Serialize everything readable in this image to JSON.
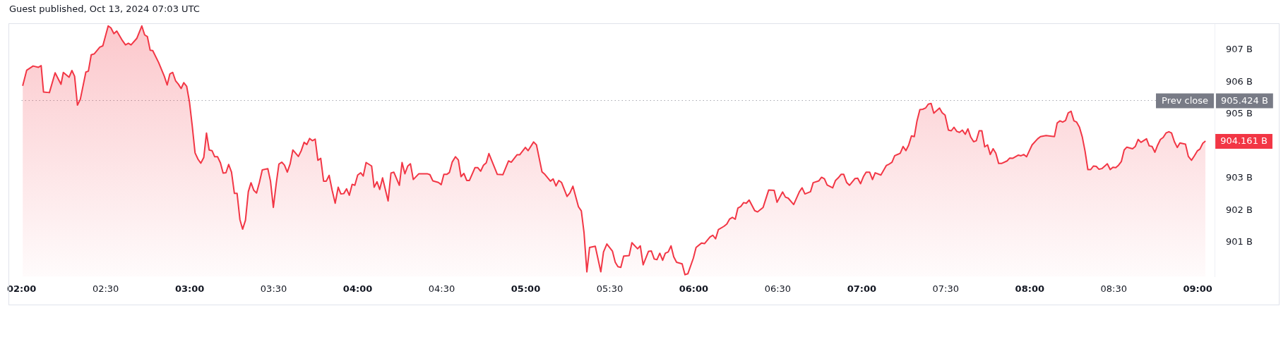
{
  "chart_data": {
    "type": "area",
    "title": "Guest published, Oct 13, 2024 07:03 UTC",
    "color": "#f23645",
    "x": [
      2.006,
      2.03,
      2.068,
      2.1,
      2.116,
      2.13,
      2.165,
      2.199,
      2.234,
      2.248,
      2.282,
      2.299,
      2.315,
      2.332,
      2.349,
      2.382,
      2.397,
      2.414,
      2.432,
      2.465,
      2.483,
      2.515,
      2.531,
      2.549,
      2.566,
      2.6,
      2.618,
      2.635,
      2.651,
      2.685,
      2.715,
      2.732,
      2.748,
      2.765,
      2.78,
      2.815,
      2.849,
      2.866,
      2.882,
      2.899,
      2.916,
      2.932,
      2.949,
      2.965,
      2.982,
      2.999,
      3.015,
      3.032,
      3.05,
      3.066,
      3.084,
      3.1,
      3.116,
      3.133,
      3.149,
      3.166,
      3.183,
      3.199,
      3.216,
      3.232,
      3.249,
      3.266,
      3.282,
      3.299,
      3.315,
      3.332,
      3.349,
      3.365,
      3.382,
      3.398,
      3.415,
      3.432,
      3.465,
      3.481,
      3.498,
      3.515,
      3.531,
      3.548,
      3.564,
      3.581,
      3.598,
      3.614,
      3.631,
      3.647,
      3.664,
      3.681,
      3.697,
      3.714,
      3.73,
      3.747,
      3.763,
      3.78,
      3.797,
      3.813,
      3.83,
      3.848,
      3.866,
      3.884,
      3.9,
      3.917,
      3.934,
      3.95,
      3.967,
      3.983,
      4.0,
      4.018,
      4.033,
      4.05,
      4.083,
      4.098,
      4.115,
      4.131,
      4.148,
      4.181,
      4.198,
      4.215,
      4.248,
      4.264,
      4.281,
      4.298,
      4.314,
      4.331,
      4.364,
      4.414,
      4.43,
      4.447,
      4.48,
      4.497,
      4.513,
      4.53,
      4.546,
      4.563,
      4.582,
      4.599,
      4.615,
      4.632,
      4.649,
      4.665,
      4.698,
      4.715,
      4.732,
      4.748,
      4.765,
      4.781,
      4.815,
      4.831,
      4.864,
      4.898,
      4.914,
      4.948,
      4.964,
      4.998,
      5.014,
      5.047,
      5.064,
      5.097,
      5.114,
      5.147,
      5.163,
      5.18,
      5.197,
      5.213,
      5.246,
      5.263,
      5.281,
      5.314,
      5.331,
      5.347,
      5.364,
      5.38,
      5.414,
      5.447,
      5.463,
      5.483,
      5.516,
      5.533,
      5.549,
      5.566,
      5.583,
      5.616,
      5.632,
      5.666,
      5.682,
      5.699,
      5.731,
      5.748,
      5.765,
      5.781,
      5.798,
      5.815,
      5.831,
      5.848,
      5.865,
      5.881,
      5.898,
      5.931,
      5.948,
      5.965,
      5.998,
      6.014,
      6.047,
      6.064,
      6.097,
      6.114,
      6.13,
      6.147,
      6.18,
      6.197,
      6.214,
      6.23,
      6.247,
      6.263,
      6.28,
      6.297,
      6.313,
      6.33,
      6.363,
      6.38,
      6.413,
      6.446,
      6.479,
      6.496,
      6.529,
      6.546,
      6.562,
      6.595,
      6.629,
      6.645,
      6.662,
      6.695,
      6.711,
      6.745,
      6.761,
      6.778,
      6.794,
      6.827,
      6.844,
      6.86,
      6.877,
      6.893,
      6.91,
      6.927,
      6.96,
      6.976,
      6.993,
      7.01,
      7.026,
      7.047,
      7.064,
      7.08,
      7.114,
      7.147,
      7.163,
      7.18,
      7.196,
      7.229,
      7.246,
      7.263,
      7.279,
      7.296,
      7.313,
      7.329,
      7.346,
      7.363,
      7.38,
      7.396,
      7.413,
      7.429,
      7.463,
      7.479,
      7.496,
      7.516,
      7.533,
      7.549,
      7.566,
      7.582,
      7.599,
      7.616,
      7.632,
      7.649,
      7.666,
      7.682,
      7.699,
      7.715,
      7.732,
      7.749,
      7.765,
      7.782,
      7.798,
      7.815,
      7.832,
      7.865,
      7.881,
      7.898,
      7.931,
      7.948,
      7.964,
      7.981,
      7.998,
      8.014,
      8.047,
      8.064,
      8.097,
      8.147,
      8.163,
      8.18,
      8.196,
      8.213,
      8.229,
      8.246,
      8.263,
      8.279,
      8.296,
      8.313,
      8.329,
      8.346,
      8.363,
      8.379,
      8.396,
      8.412,
      8.429,
      8.462,
      8.479,
      8.495,
      8.512,
      8.529,
      8.545,
      8.562,
      8.578,
      8.612,
      8.628,
      8.645,
      8.662,
      8.695,
      8.711,
      8.728,
      8.745,
      8.761,
      8.778,
      8.794,
      8.811,
      8.828,
      8.844,
      8.861,
      8.878,
      8.894,
      8.927,
      8.944,
      8.963,
      8.98,
      8.997,
      9.013,
      9.03,
      9.046
    ],
    "values": [
      905.88,
      906.37,
      906.5,
      906.46,
      906.51,
      905.69,
      905.67,
      906.29,
      905.93,
      906.3,
      906.15,
      906.36,
      906.18,
      905.28,
      905.46,
      906.31,
      906.34,
      906.85,
      906.88,
      907.09,
      907.13,
      907.75,
      907.69,
      907.51,
      907.59,
      907.29,
      907.16,
      907.21,
      907.16,
      907.36,
      907.75,
      907.47,
      907.42,
      906.99,
      906.98,
      906.61,
      906.18,
      905.91,
      906.25,
      906.3,
      906.04,
      905.94,
      905.8,
      905.98,
      905.87,
      905.37,
      904.64,
      903.79,
      903.59,
      903.47,
      903.65,
      904.41,
      903.88,
      903.86,
      903.67,
      903.67,
      903.48,
      903.16,
      903.17,
      903.43,
      903.19,
      902.53,
      902.53,
      901.71,
      901.41,
      901.69,
      902.58,
      902.86,
      902.62,
      902.54,
      902.87,
      903.26,
      903.3,
      902.91,
      902.09,
      902.83,
      903.44,
      903.5,
      903.41,
      903.19,
      903.45,
      903.88,
      903.78,
      903.68,
      903.86,
      904.12,
      904.05,
      904.24,
      904.17,
      904.22,
      903.56,
      903.62,
      902.91,
      902.91,
      903.09,
      902.62,
      902.22,
      902.72,
      902.51,
      902.52,
      902.67,
      902.47,
      902.81,
      902.78,
      903.1,
      903.17,
      903.07,
      903.49,
      903.38,
      902.72,
      902.89,
      902.65,
      903.01,
      902.29,
      903.16,
      903.19,
      902.78,
      903.49,
      903.14,
      903.38,
      903.45,
      902.96,
      903.14,
      903.14,
      903.11,
      902.92,
      902.87,
      902.8,
      903.12,
      903.12,
      903.18,
      903.51,
      903.67,
      903.57,
      903.05,
      903.15,
      902.93,
      902.93,
      903.33,
      903.33,
      903.22,
      903.4,
      903.48,
      903.77,
      903.33,
      903.12,
      903.11,
      903.54,
      903.5,
      903.73,
      903.73,
      903.96,
      903.86,
      904.13,
      904.04,
      903.2,
      903.12,
      902.91,
      902.98,
      902.76,
      902.93,
      902.87,
      902.43,
      902.54,
      902.75,
      902.11,
      901.98,
      901.31,
      900.08,
      900.84,
      900.88,
      900.08,
      900.7,
      900.95,
      900.73,
      900.38,
      900.24,
      900.22,
      900.57,
      900.59,
      900.99,
      900.8,
      900.89,
      900.3,
      900.72,
      900.73,
      900.48,
      900.46,
      900.66,
      900.44,
      900.66,
      900.7,
      900.89,
      900.55,
      900.38,
      900.33,
      899.99,
      900.02,
      900.51,
      900.84,
      900.98,
      900.96,
      901.17,
      901.22,
      901.11,
      901.4,
      901.5,
      901.57,
      901.73,
      901.78,
      901.72,
      902.07,
      902.12,
      902.24,
      902.22,
      902.32,
      901.99,
      901.95,
      902.09,
      902.63,
      902.62,
      902.25,
      902.57,
      902.41,
      902.38,
      902.18,
      902.58,
      902.7,
      902.51,
      902.58,
      902.86,
      902.92,
      903.03,
      902.98,
      902.79,
      902.7,
      902.93,
      903.01,
      903.12,
      903.12,
      902.87,
      902.78,
      902.99,
      903.0,
      902.83,
      903.05,
      903.19,
      903.19,
      902.96,
      903.17,
      903.1,
      903.4,
      903.44,
      903.5,
      903.7,
      903.78,
      903.99,
      903.86,
      904.03,
      904.32,
      904.3,
      904.79,
      905.14,
      905.15,
      905.19,
      905.31,
      905.33,
      905.03,
      905.19,
      905.04,
      904.97,
      904.5,
      904.48,
      904.59,
      904.46,
      904.43,
      904.5,
      904.37,
      904.54,
      904.28,
      904.14,
      904.17,
      904.48,
      904.48,
      903.98,
      904.04,
      903.74,
      903.92,
      903.78,
      903.46,
      903.46,
      903.54,
      903.63,
      903.62,
      903.72,
      903.7,
      903.74,
      903.67,
      903.86,
      904.04,
      904.23,
      904.3,
      904.33,
      904.3,
      904.72,
      904.79,
      904.75,
      904.8,
      905.04,
      905.09,
      904.79,
      904.75,
      904.59,
      904.28,
      903.85,
      903.27,
      903.27,
      903.38,
      903.37,
      903.28,
      903.3,
      903.45,
      903.27,
      903.34,
      903.33,
      903.41,
      903.52,
      903.88,
      903.97,
      903.92,
      903.99,
      904.21,
      904.12,
      904.23,
      904.01,
      903.99,
      903.81,
      904.03,
      904.21,
      904.27,
      904.41,
      904.45,
      904.41,
      904.14,
      903.96,
      904.1,
      904.06,
      903.68,
      903.56,
      903.7,
      903.85,
      903.91,
      904.09,
      904.161
    ],
    "xlim": [
      2.0,
      9.1
    ],
    "xticks": [
      {
        "value": 2,
        "label": "02:00"
      },
      {
        "value": 2.5,
        "label": "02:30"
      },
      {
        "value": 3,
        "label": "03:00"
      },
      {
        "value": 3.5,
        "label": "03:30"
      },
      {
        "value": 4,
        "label": "04:00"
      },
      {
        "value": 4.5,
        "label": "04:30"
      },
      {
        "value": 5,
        "label": "05:00"
      },
      {
        "value": 5.5,
        "label": "05:30"
      },
      {
        "value": 6,
        "label": "06:00"
      },
      {
        "value": 6.5,
        "label": "06:30"
      },
      {
        "value": 7,
        "label": "07:00"
      },
      {
        "value": 7.5,
        "label": "07:30"
      },
      {
        "value": 8,
        "label": "08:00"
      },
      {
        "value": 8.5,
        "label": "08:30"
      },
      {
        "value": 9,
        "label": "09:00"
      }
    ],
    "ylim": [
      899.93,
      907.82
    ],
    "yticks": [
      {
        "value": 901,
        "label": "901 B"
      },
      {
        "value": 902,
        "label": "902 B"
      },
      {
        "value": 903,
        "label": "903 B"
      },
      {
        "value": 905,
        "label": "905 B"
      },
      {
        "value": 906,
        "label": "906 B"
      },
      {
        "value": 907,
        "label": "907 B"
      }
    ],
    "ref_lines": [
      {
        "axis": "y",
        "value": 905.424,
        "label": "Prev close",
        "color": "#787b86",
        "line_style": "dotted"
      }
    ],
    "annotations": [
      "905.424 B",
      {
        "text": "904.161 B",
        "x": 9.046,
        "y": 904.161
      }
    ]
  }
}
